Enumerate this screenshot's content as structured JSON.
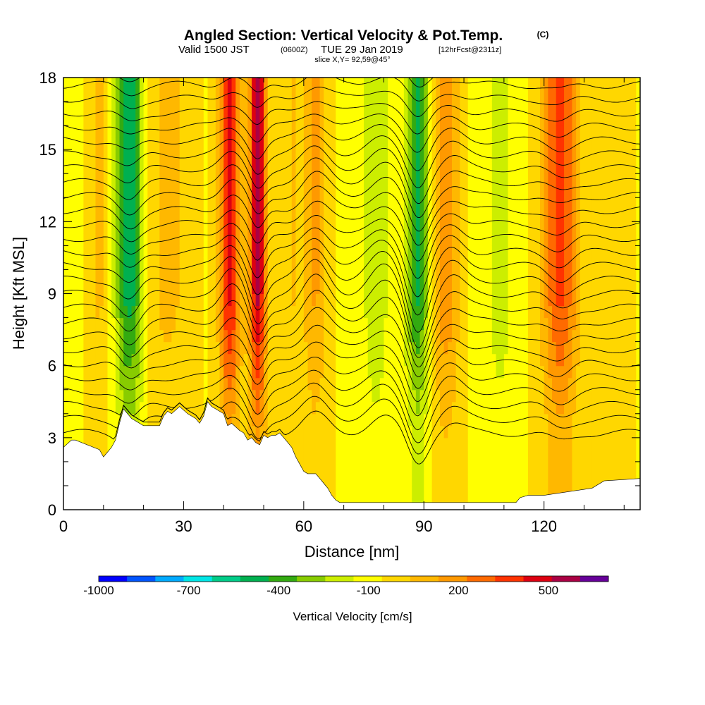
{
  "header": {
    "title": "Angled Section: Vertical Velocity & Pot.Temp.",
    "title_mark": "(C)",
    "valid_a": "Valid 1500 JST",
    "valid_b": "(0600Z)",
    "valid_c": "TUE 29 Jan 2019",
    "valid_d": "[12hrFcst@2311z]",
    "slice": "slice X,Y= 92,59@45°"
  },
  "chart_data": {
    "type": "heatmap",
    "xlabel": "Distance [nm]",
    "ylabel": "Height [Kft MSL]",
    "xlim": [
      0,
      144
    ],
    "ylim": [
      0,
      18
    ],
    "x_ticks": [
      0,
      30,
      60,
      90,
      120
    ],
    "y_ticks": [
      0,
      3,
      6,
      9,
      12,
      15,
      18
    ],
    "colorbar": {
      "label": "Vertical Velocity [cm/s]",
      "tick_labels": [
        "-1000",
        "-700",
        "-400",
        "-100",
        "200",
        "500"
      ],
      "tick_values": [
        -1000,
        -700,
        -400,
        -100,
        200,
        500
      ],
      "range": [
        -1000,
        700
      ],
      "step": 100,
      "colors": [
        "#0000ff",
        "#0055ff",
        "#00aaff",
        "#00e5e5",
        "#00cc88",
        "#00b050",
        "#33aa11",
        "#88cc00",
        "#ccee00",
        "#ffff00",
        "#ffd700",
        "#ffb800",
        "#ff9900",
        "#ff6a00",
        "#ff3300",
        "#dd0011",
        "#aa0044",
        "#660099"
      ]
    },
    "velocity_columns": [
      {
        "x": 16.5,
        "w": 3.6,
        "amp": -450
      },
      {
        "x": 9,
        "w": 3,
        "amp": 140
      },
      {
        "x": 26,
        "w": 6,
        "amp": 150
      },
      {
        "x": 41.5,
        "w": 2.6,
        "amp": 560
      },
      {
        "x": 48.5,
        "w": 2.2,
        "amp": 650
      },
      {
        "x": 57,
        "w": 3,
        "amp": 120
      },
      {
        "x": 63,
        "w": 3,
        "amp": 230
      },
      {
        "x": 78,
        "w": 3,
        "amp": -180
      },
      {
        "x": 88.5,
        "w": 2.8,
        "amp": -400
      },
      {
        "x": 95.5,
        "w": 3.5,
        "amp": 300
      },
      {
        "x": 109,
        "w": 3,
        "amp": -150
      },
      {
        "x": 124,
        "w": 4.5,
        "amp": 460
      },
      {
        "x": 138,
        "w": 4,
        "amp": 120
      }
    ],
    "terrain": {
      "x": [
        0,
        2,
        3,
        9,
        10,
        12,
        13,
        14,
        15,
        17,
        20,
        24,
        25,
        26,
        27,
        29,
        31,
        33,
        34,
        35,
        36,
        37,
        40,
        41,
        42,
        44,
        45,
        46,
        47,
        48,
        49,
        50,
        51,
        52,
        53,
        54,
        56,
        57,
        58,
        59,
        60,
        61,
        62,
        63,
        64,
        65,
        66,
        67,
        68,
        69,
        75,
        90,
        100,
        113,
        114,
        116,
        120,
        128,
        132,
        135,
        144
      ],
      "height": [
        2.6,
        2.9,
        2.9,
        2.5,
        2.2,
        2.6,
        2.9,
        3.6,
        4.2,
        3.8,
        3.5,
        3.5,
        3.9,
        4.1,
        4.0,
        4.3,
        4.0,
        3.8,
        3.6,
        3.9,
        4.5,
        4.3,
        4.0,
        3.5,
        3.6,
        3.3,
        3.2,
        2.9,
        3.0,
        2.8,
        2.7,
        3.1,
        3.0,
        3.1,
        3.1,
        3.2,
        2.8,
        2.6,
        2.2,
        1.9,
        1.6,
        1.5,
        1.5,
        1.5,
        1.3,
        1.1,
        0.9,
        0.6,
        0.4,
        0.3,
        0.3,
        0.3,
        0.3,
        0.3,
        0.5,
        0.6,
        0.6,
        0.8,
        0.9,
        1.2,
        1.3
      ]
    },
    "theta_contours": {
      "count": 30,
      "base_height": 3.2,
      "spacing": 0.58,
      "waves": [
        {
          "x": 16.5,
          "w": 3.5,
          "amp": -0.9
        },
        {
          "x": 42,
          "w": 3.5,
          "amp": 0.9
        },
        {
          "x": 48.5,
          "w": 2.5,
          "amp": -1.2
        },
        {
          "x": 63,
          "w": 4.5,
          "amp": 1.3
        },
        {
          "x": 80,
          "w": 5,
          "amp": 1.1
        },
        {
          "x": 88.5,
          "w": 3.5,
          "amp": -2.2
        },
        {
          "x": 97,
          "w": 4,
          "amp": 0.7
        },
        {
          "x": 124,
          "w": 4,
          "amp": -0.6
        }
      ]
    }
  }
}
